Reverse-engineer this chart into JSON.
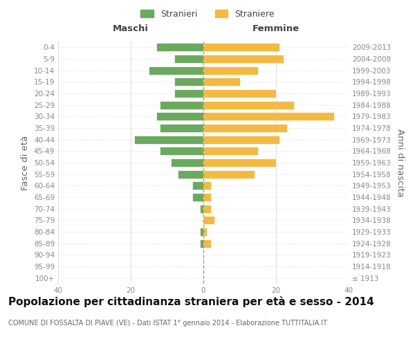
{
  "age_groups": [
    "100+",
    "95-99",
    "90-94",
    "85-89",
    "80-84",
    "75-79",
    "70-74",
    "65-69",
    "60-64",
    "55-59",
    "50-54",
    "45-49",
    "40-44",
    "35-39",
    "30-34",
    "25-29",
    "20-24",
    "15-19",
    "10-14",
    "5-9",
    "0-4"
  ],
  "birth_years": [
    "≤ 1913",
    "1914-1918",
    "1919-1923",
    "1924-1928",
    "1929-1933",
    "1934-1938",
    "1939-1943",
    "1944-1948",
    "1949-1953",
    "1954-1958",
    "1959-1963",
    "1964-1968",
    "1969-1973",
    "1974-1978",
    "1979-1983",
    "1984-1988",
    "1989-1993",
    "1994-1998",
    "1999-2003",
    "2004-2008",
    "2009-2013"
  ],
  "males": [
    0,
    0,
    0,
    1,
    1,
    0,
    1,
    3,
    3,
    7,
    9,
    12,
    19,
    12,
    13,
    12,
    8,
    8,
    15,
    8,
    13
  ],
  "females": [
    0,
    0,
    0,
    2,
    1,
    3,
    2,
    2,
    2,
    14,
    20,
    15,
    21,
    23,
    36,
    25,
    20,
    10,
    15,
    22,
    21
  ],
  "male_color": "#6aaa5e",
  "female_color": "#f5b942",
  "bar_edge_color": "white",
  "background_color": "#ffffff",
  "grid_color": "#cccccc",
  "title": "Popolazione per cittadinanza straniera per età e sesso - 2014",
  "subtitle": "COMUNE DI FOSSALTA DI PIAVE (VE) - Dati ISTAT 1° gennaio 2014 - Elaborazione TUTTITALIA.IT",
  "ylabel_left": "Fasce di età",
  "ylabel_right": "Anni di nascita",
  "xlabel_left": "Maschi",
  "xlabel_right": "Femmine",
  "legend_stranieri": "Stranieri",
  "legend_straniere": "Straniere",
  "xlim": 40,
  "title_fontsize": 11,
  "subtitle_fontsize": 7,
  "tick_fontsize": 7.5,
  "label_fontsize": 9.5
}
